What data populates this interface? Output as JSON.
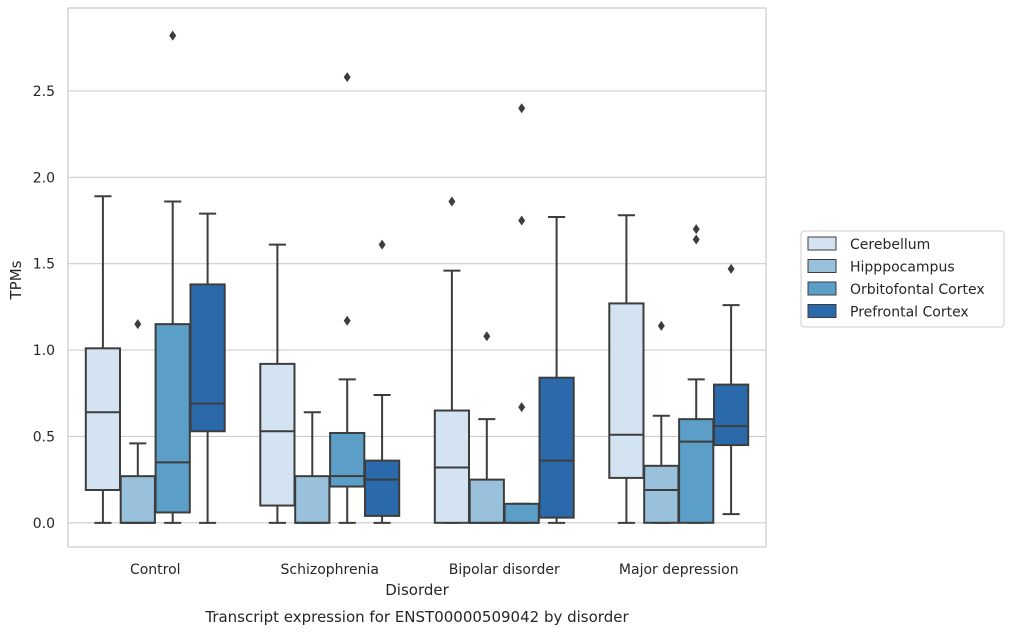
{
  "chart_data": {
    "type": "box",
    "title": "",
    "caption": "Transcript expression for ENST00000509042 by disorder",
    "xlabel": "Disorder",
    "ylabel": "TPMs",
    "ylim": [
      -0.14,
      2.98
    ],
    "yticks": [
      0.0,
      0.5,
      1.0,
      1.5,
      2.0,
      2.5
    ],
    "ytick_labels": [
      "0.0",
      "0.5",
      "1.0",
      "1.5",
      "2.0",
      "2.5"
    ],
    "grid": "horizontal",
    "legend_position": "right",
    "categories": [
      "Control",
      "Schizophrenia",
      "Bipolar disorder",
      "Major depression"
    ],
    "series": [
      {
        "name": "Cerebellum",
        "color": "#d3e3f1",
        "boxes": [
          {
            "whisker_low": 0.0,
            "q1": 0.19,
            "median": 0.64,
            "q3": 1.01,
            "whisker_high": 1.89,
            "outliers": []
          },
          {
            "whisker_low": 0.0,
            "q1": 0.1,
            "median": 0.53,
            "q3": 0.92,
            "whisker_high": 1.61,
            "outliers": []
          },
          {
            "whisker_low": 0.0,
            "q1": 0.0,
            "median": 0.32,
            "q3": 0.65,
            "whisker_high": 1.46,
            "outliers": [
              1.86
            ]
          },
          {
            "whisker_low": 0.0,
            "q1": 0.26,
            "median": 0.51,
            "q3": 1.27,
            "whisker_high": 1.78,
            "outliers": []
          }
        ]
      },
      {
        "name": "Hipppocampus",
        "color": "#9ac1dc",
        "boxes": [
          {
            "whisker_low": 0.0,
            "q1": 0.0,
            "median": 0.0,
            "q3": 0.27,
            "whisker_high": 0.46,
            "outliers": [
              1.15
            ]
          },
          {
            "whisker_low": 0.0,
            "q1": 0.0,
            "median": 0.0,
            "q3": 0.27,
            "whisker_high": 0.64,
            "outliers": []
          },
          {
            "whisker_low": 0.0,
            "q1": 0.0,
            "median": 0.0,
            "q3": 0.25,
            "whisker_high": 0.6,
            "outliers": [
              1.08
            ]
          },
          {
            "whisker_low": 0.0,
            "q1": 0.0,
            "median": 0.19,
            "q3": 0.33,
            "whisker_high": 0.62,
            "outliers": [
              1.14
            ]
          }
        ]
      },
      {
        "name": "Orbitofontal Cortex",
        "color": "#5b9fc9",
        "boxes": [
          {
            "whisker_low": 0.0,
            "q1": 0.06,
            "median": 0.35,
            "q3": 1.15,
            "whisker_high": 1.86,
            "outliers": [
              2.82
            ]
          },
          {
            "whisker_low": 0.0,
            "q1": 0.21,
            "median": 0.27,
            "q3": 0.52,
            "whisker_high": 0.83,
            "outliers": [
              1.17,
              2.58
            ]
          },
          {
            "whisker_low": 0.0,
            "q1": 0.0,
            "median": 0.0,
            "q3": 0.11,
            "whisker_high": 0.11,
            "outliers": [
              0.67,
              1.75,
              2.4
            ]
          },
          {
            "whisker_low": 0.0,
            "q1": 0.0,
            "median": 0.47,
            "q3": 0.6,
            "whisker_high": 0.83,
            "outliers": [
              1.64,
              1.7
            ]
          }
        ]
      },
      {
        "name": "Prefrontal Cortex",
        "color": "#2a6aab",
        "boxes": [
          {
            "whisker_low": 0.0,
            "q1": 0.53,
            "median": 0.69,
            "q3": 1.38,
            "whisker_high": 1.79,
            "outliers": []
          },
          {
            "whisker_low": 0.0,
            "q1": 0.04,
            "median": 0.25,
            "q3": 0.36,
            "whisker_high": 0.74,
            "outliers": [
              1.61
            ]
          },
          {
            "whisker_low": 0.0,
            "q1": 0.03,
            "median": 0.36,
            "q3": 0.84,
            "whisker_high": 1.77,
            "outliers": []
          },
          {
            "whisker_low": 0.05,
            "q1": 0.45,
            "median": 0.56,
            "q3": 0.8,
            "whisker_high": 1.26,
            "outliers": [
              1.47
            ]
          }
        ]
      }
    ]
  }
}
